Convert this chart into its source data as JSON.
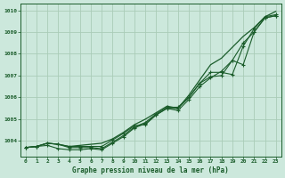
{
  "title": "Graphe pression niveau de la mer (hPa)",
  "background_color": "#cce8dc",
  "grid_color": "#aaccb8",
  "line_color": "#1a5c2a",
  "xlim": [
    -0.5,
    23.5
  ],
  "ylim": [
    1003.3,
    1010.3
  ],
  "yticks": [
    1004,
    1005,
    1006,
    1007,
    1008,
    1009,
    1010
  ],
  "xticks": [
    0,
    1,
    2,
    3,
    4,
    5,
    6,
    7,
    8,
    9,
    10,
    11,
    12,
    13,
    14,
    15,
    16,
    17,
    18,
    19,
    20,
    21,
    22,
    23
  ],
  "smooth_line": [
    1003.7,
    1003.75,
    1003.9,
    1003.85,
    1003.75,
    1003.8,
    1003.85,
    1003.9,
    1004.1,
    1004.4,
    1004.75,
    1005.0,
    1005.3,
    1005.6,
    1005.5,
    1006.1,
    1006.8,
    1007.5,
    1007.8,
    1008.3,
    1008.8,
    1009.2,
    1009.7,
    1009.95
  ],
  "line_markers1": [
    1003.7,
    1003.75,
    1003.9,
    1003.85,
    1003.75,
    1003.75,
    1003.75,
    1003.75,
    1004.05,
    1004.35,
    1004.7,
    1004.75,
    1005.2,
    1005.5,
    1005.5,
    1006.0,
    1006.65,
    1007.15,
    1007.15,
    1007.05,
    1008.35,
    1009.15,
    1009.7,
    1009.8
  ],
  "line_markers2": [
    1003.7,
    1003.75,
    1003.9,
    1003.85,
    1003.7,
    1003.7,
    1003.7,
    1003.65,
    1003.95,
    1004.25,
    1004.65,
    1004.85,
    1005.25,
    1005.55,
    1005.55,
    1006.0,
    1006.65,
    1006.95,
    1007.0,
    1007.7,
    1007.5,
    1009.0,
    1009.65,
    1009.75
  ],
  "line_markers3": [
    1003.7,
    1003.75,
    1003.8,
    1003.65,
    1003.6,
    1003.6,
    1003.65,
    1003.6,
    1003.9,
    1004.2,
    1004.6,
    1004.8,
    1005.2,
    1005.5,
    1005.4,
    1005.9,
    1006.5,
    1006.9,
    1007.2,
    1007.7,
    1008.5,
    1009.0,
    1009.65,
    1009.75
  ]
}
